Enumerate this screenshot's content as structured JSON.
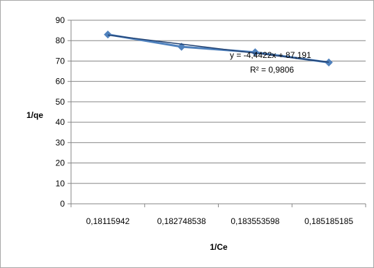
{
  "chart_data": {
    "type": "line",
    "title": "",
    "xlabel": "1/Ce",
    "ylabel": "1/qe",
    "categories": [
      "0,18115942",
      "0,182748538",
      "0,183553598",
      "0,185185185"
    ],
    "series": [
      {
        "values": [
          83.0,
          77.0,
          74.3,
          69.3
        ],
        "color": "#4f81bd",
        "marker": "diamond"
      }
    ],
    "trendline": {
      "type": "linear",
      "color": "#1f3f6f",
      "equation": "y = -4,4422x + 87,191",
      "r_squared": "R² = 0,9806",
      "start_value": 82.75,
      "end_value": 69.42
    },
    "ylim": [
      0,
      90
    ],
    "ytick_labels": [
      "0",
      "10",
      "20",
      "30",
      "40",
      "50",
      "60",
      "70",
      "80",
      "90"
    ],
    "grid": true,
    "legend": "none"
  }
}
